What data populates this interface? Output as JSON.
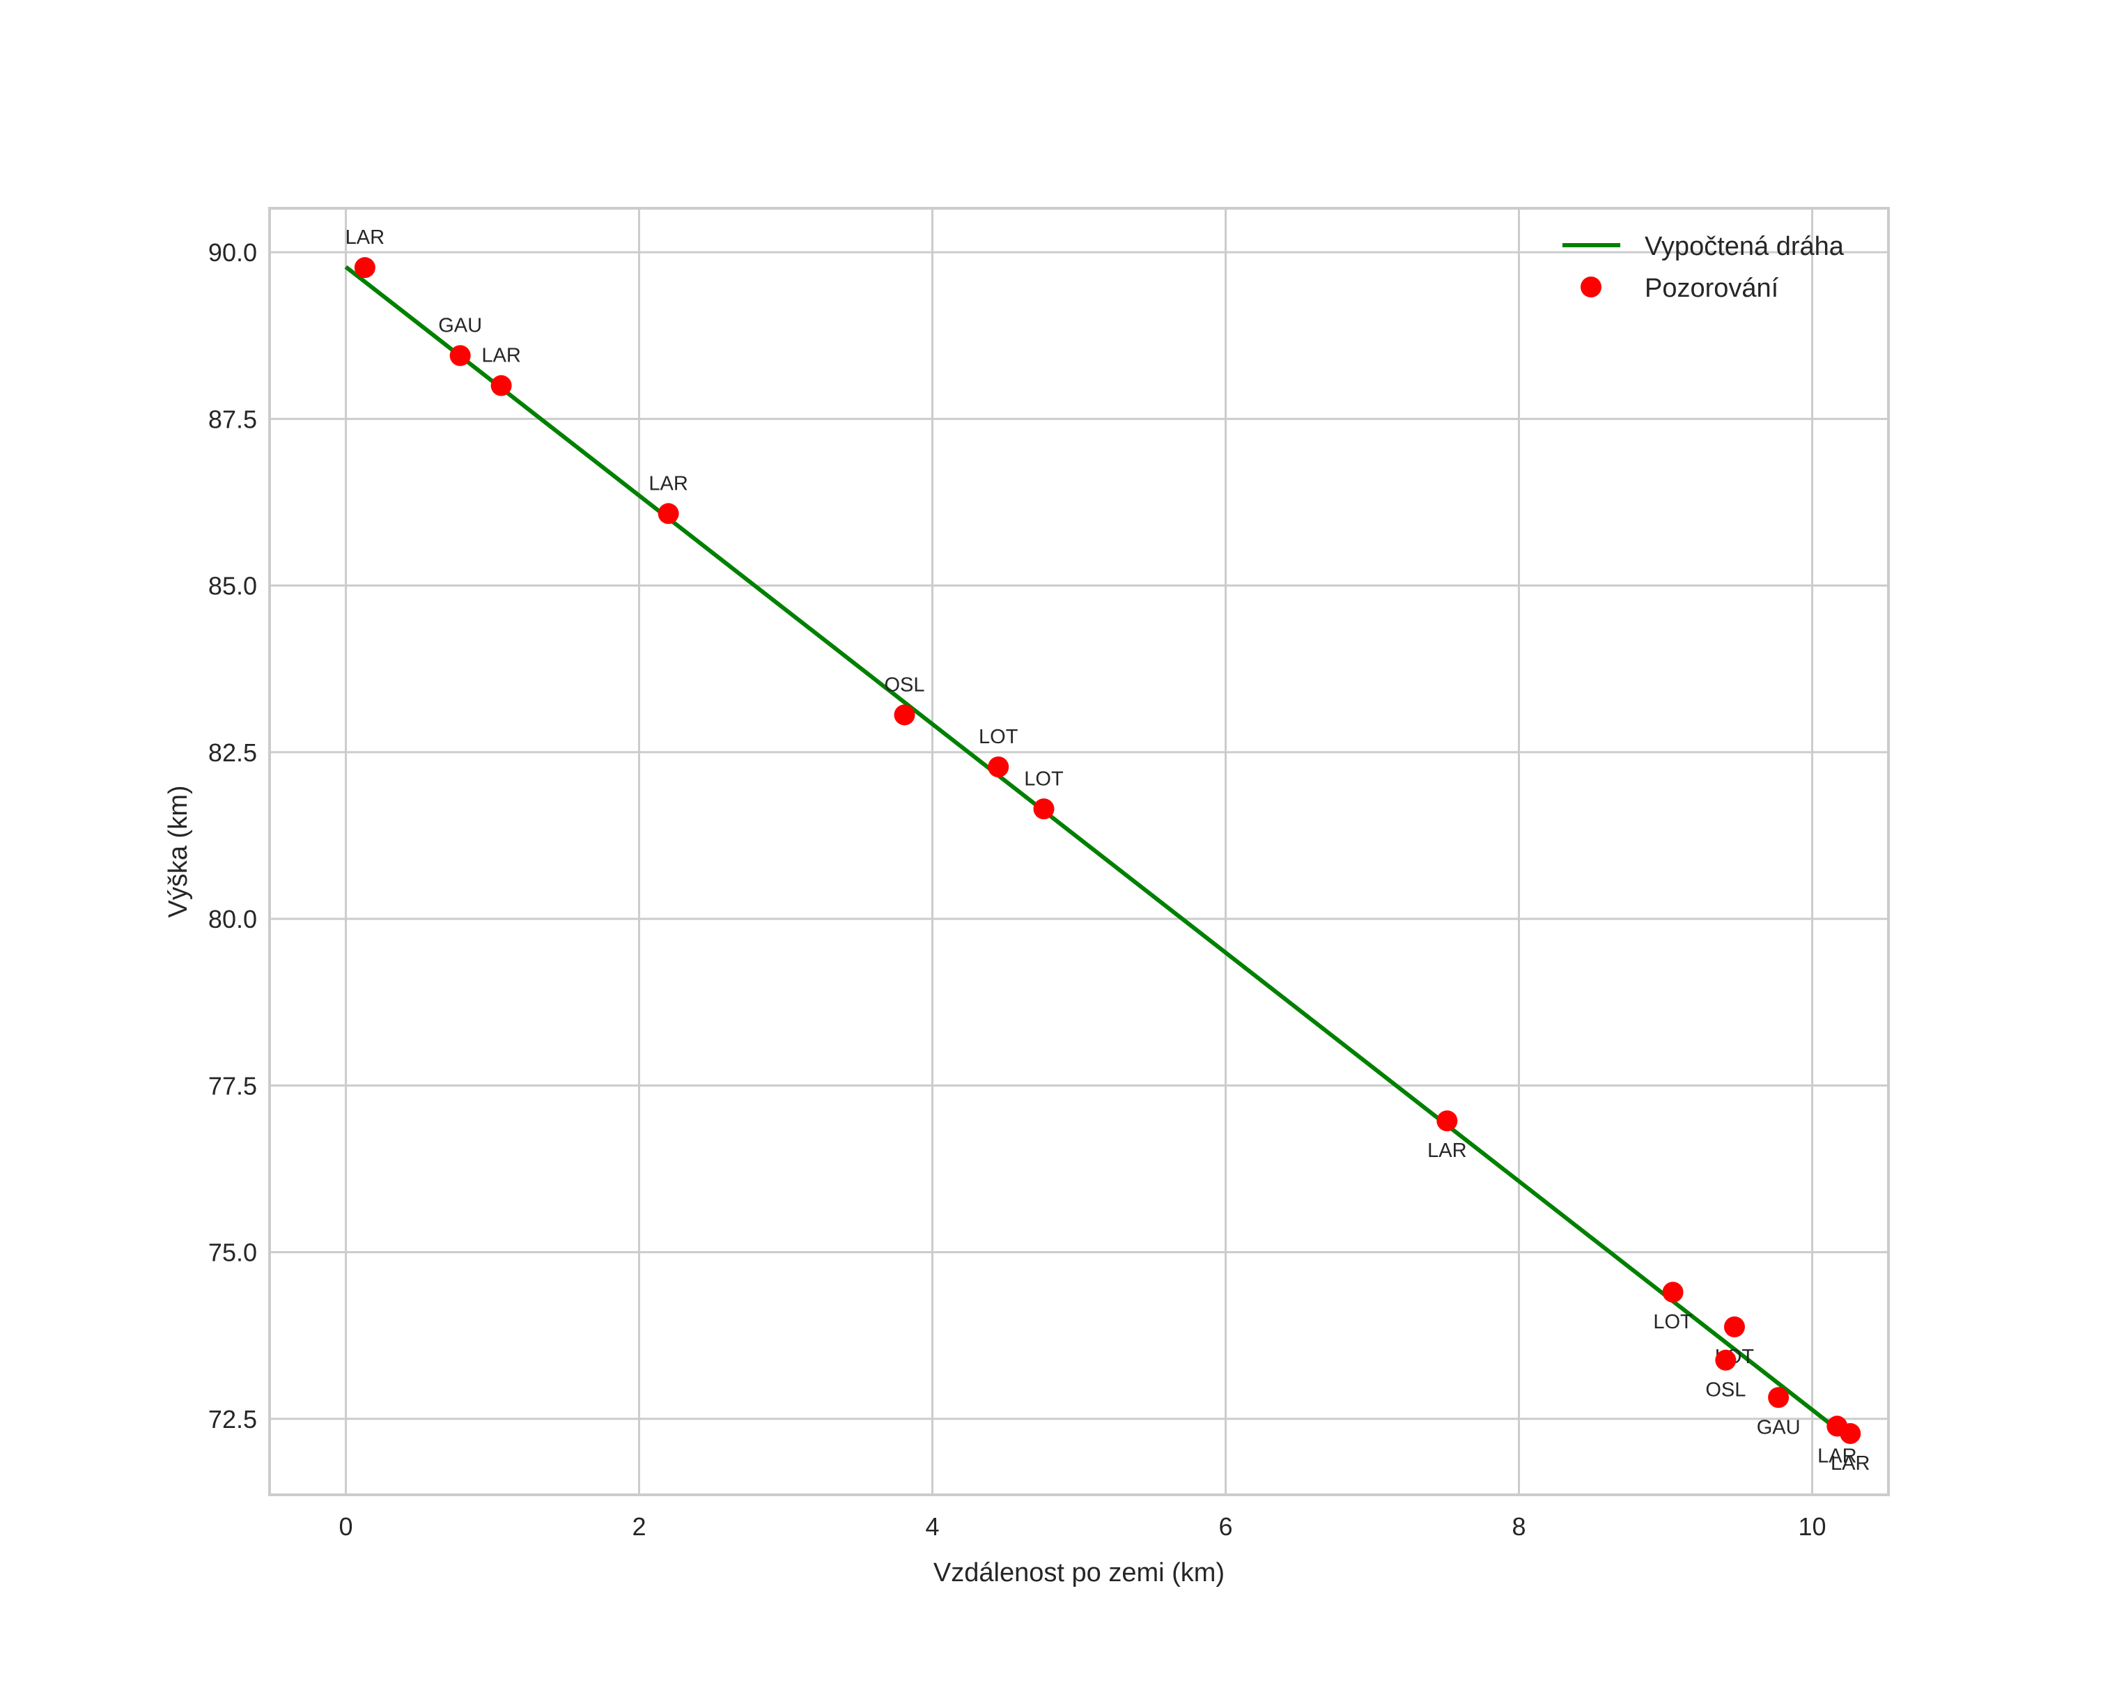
{
  "chart_data": {
    "type": "line+scatter",
    "title": "",
    "xlabel": "Vzdálenost po zemi (km)",
    "ylabel": "Výška (km)",
    "xlim": [
      -0.52,
      10.52
    ],
    "ylim": [
      71.36,
      90.66
    ],
    "xticks": [
      0,
      2,
      4,
      6,
      8,
      10
    ],
    "xtick_labels": [
      "0",
      "2",
      "4",
      "6",
      "8",
      "10"
    ],
    "yticks": [
      72.5,
      75.0,
      77.5,
      80.0,
      82.5,
      85.0,
      87.5,
      90.0
    ],
    "ytick_labels": [
      "72.5",
      "75.0",
      "77.5",
      "80.0",
      "82.5",
      "85.0",
      "87.5",
      "90.0"
    ],
    "grid": true,
    "legend_position": "upper right",
    "series": [
      {
        "name": "Vypočtená dráha",
        "kind": "line",
        "color": "#008000",
        "x": [
          0.0,
          10.12
        ],
        "y": [
          89.78,
          72.43
        ]
      },
      {
        "name": "Pozorování",
        "kind": "scatter",
        "color": "#ff0000",
        "points": [
          {
            "x": 0.13,
            "y": 89.77,
            "label": "LAR",
            "label_pos": "above"
          },
          {
            "x": 0.78,
            "y": 88.45,
            "label": "GAU",
            "label_pos": "above"
          },
          {
            "x": 1.06,
            "y": 88.0,
            "label": "LAR",
            "label_pos": "above"
          },
          {
            "x": 2.2,
            "y": 86.08,
            "label": "LAR",
            "label_pos": "above"
          },
          {
            "x": 3.81,
            "y": 83.06,
            "label": "OSL",
            "label_pos": "above"
          },
          {
            "x": 4.45,
            "y": 82.28,
            "label": "LOT",
            "label_pos": "above"
          },
          {
            "x": 4.76,
            "y": 81.65,
            "label": "LOT",
            "label_pos": "above"
          },
          {
            "x": 7.51,
            "y": 76.97,
            "label": "LAR",
            "label_pos": "below"
          },
          {
            "x": 9.05,
            "y": 74.4,
            "label": "LOT",
            "label_pos": "below"
          },
          {
            "x": 9.47,
            "y": 73.88,
            "label": "LOT",
            "label_pos": "below"
          },
          {
            "x": 9.41,
            "y": 73.38,
            "label": "OSL",
            "label_pos": "below"
          },
          {
            "x": 9.77,
            "y": 72.82,
            "label": "GAU",
            "label_pos": "below"
          },
          {
            "x": 10.17,
            "y": 72.39,
            "label": "LAR",
            "label_pos": "below"
          },
          {
            "x": 10.26,
            "y": 72.28,
            "label": "LAR",
            "label_pos": "below"
          }
        ]
      }
    ]
  },
  "legend": {
    "items": [
      {
        "label": "Vypočtená dráha",
        "marker": "line",
        "color": "#008000"
      },
      {
        "label": "Pozorování",
        "marker": "dot",
        "color": "#ff0000"
      }
    ]
  },
  "style": {
    "grid_color": "#cccccc",
    "frame_color": "#cccccc",
    "text_color": "#262626"
  }
}
